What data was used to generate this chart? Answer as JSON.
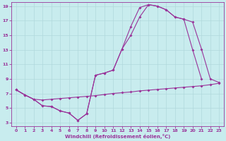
{
  "xlabel": "Windchill (Refroidissement éolien,°C)",
  "bg_color": "#c8ecee",
  "grid_color": "#b0d8dc",
  "line_color": "#993399",
  "xlim": [
    -0.5,
    23.5
  ],
  "ylim": [
    2.5,
    19.5
  ],
  "xticks": [
    0,
    1,
    2,
    3,
    4,
    5,
    6,
    7,
    8,
    9,
    10,
    11,
    12,
    13,
    14,
    15,
    16,
    17,
    18,
    19,
    20,
    21,
    22,
    23
  ],
  "yticks": [
    3,
    5,
    7,
    9,
    11,
    13,
    15,
    17,
    19
  ],
  "line1_x": [
    0,
    1,
    2,
    3,
    4,
    5,
    6,
    7,
    8,
    9,
    10,
    11,
    12,
    13,
    14,
    15,
    16,
    17,
    18,
    19,
    20,
    21
  ],
  "line1_y": [
    7.5,
    6.8,
    6.2,
    5.3,
    5.2,
    4.6,
    4.3,
    3.3,
    4.2,
    9.5,
    9.8,
    10.2,
    13.1,
    16.2,
    18.8,
    19.2,
    19.0,
    18.5,
    17.5,
    17.2,
    13.0,
    9.0
  ],
  "line2_x": [
    0,
    1,
    2,
    3,
    4,
    5,
    6,
    7,
    8,
    9,
    10,
    11,
    12,
    13,
    14,
    15,
    16,
    17,
    18,
    19,
    20,
    21,
    22,
    23
  ],
  "line2_y": [
    7.5,
    6.8,
    6.2,
    5.3,
    5.2,
    4.6,
    4.3,
    3.3,
    4.2,
    9.5,
    9.8,
    10.2,
    13.1,
    15.0,
    17.5,
    19.2,
    19.0,
    18.5,
    17.5,
    17.2,
    16.8,
    13.1,
    9.0,
    8.5
  ],
  "line3_x": [
    0,
    1,
    2,
    3,
    4,
    5,
    6,
    7,
    8,
    9,
    10,
    11,
    12,
    13,
    14,
    15,
    16,
    17,
    18,
    19,
    20,
    21,
    22,
    23
  ],
  "line3_y": [
    7.5,
    6.8,
    6.2,
    6.1,
    6.2,
    6.3,
    6.4,
    6.5,
    6.6,
    6.7,
    6.85,
    7.0,
    7.1,
    7.2,
    7.35,
    7.45,
    7.55,
    7.65,
    7.75,
    7.85,
    7.95,
    8.05,
    8.2,
    8.4
  ]
}
